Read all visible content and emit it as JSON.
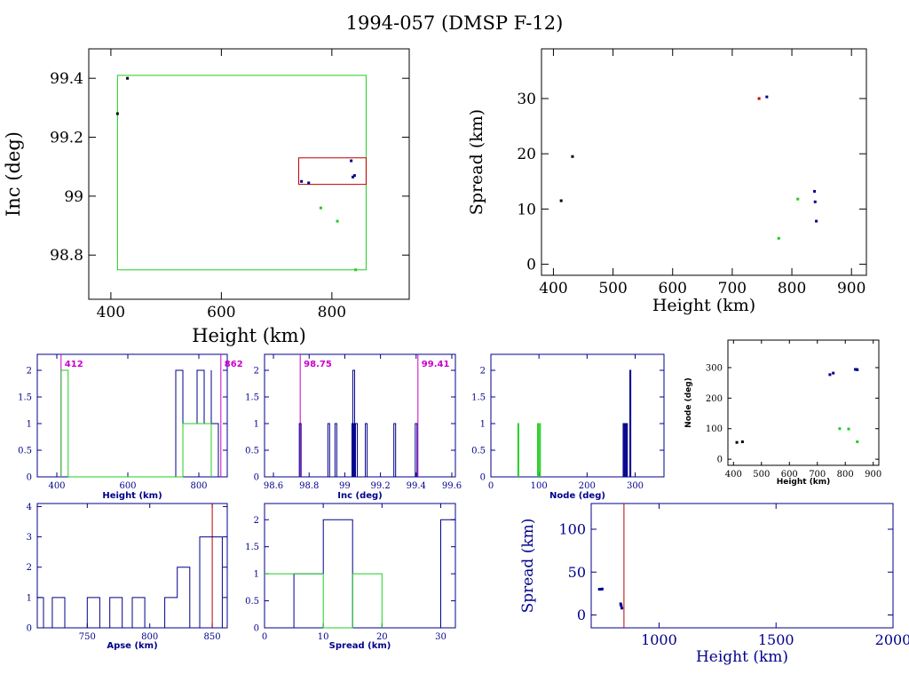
{
  "title": "1994-057 (DMSP F-12)",
  "colors": {
    "black": "#000000",
    "blue": "#00008b",
    "green": "#22cc22",
    "red": "#c00000",
    "magenta": "#cc00cc"
  },
  "chart_data": [
    {
      "id": "inc-vs-height",
      "type": "scatter",
      "xlabel": "Height (km)",
      "ylabel": "Inc (deg)",
      "xlim": [
        360,
        940
      ],
      "ylim": [
        98.65,
        99.5
      ],
      "xticks": [
        400,
        600,
        800
      ],
      "xtick_labels": [
        "400",
        "600",
        "800"
      ],
      "yticks": [
        98.8,
        99,
        99.2,
        99.4
      ],
      "ytick_labels": [
        "98.8",
        "99",
        "99.2",
        "99.4"
      ],
      "series": [
        {
          "color": "black",
          "points": [
            [
              412,
              99.28
            ],
            [
              430,
              99.4
            ]
          ]
        },
        {
          "color": "blue",
          "points": [
            [
              745,
              99.05
            ],
            [
              758,
              99.045
            ],
            [
              835,
              99.12
            ],
            [
              838,
              99.065
            ],
            [
              841,
              99.07
            ]
          ]
        },
        {
          "color": "green",
          "points": [
            [
              780,
              98.96
            ],
            [
              810,
              98.915
            ],
            [
              843,
              98.75
            ]
          ]
        }
      ],
      "boxes": [
        {
          "color": "green",
          "x": [
            412,
            862
          ],
          "y": [
            98.75,
            99.41
          ]
        },
        {
          "color": "red",
          "x": [
            740,
            862
          ],
          "y": [
            99.04,
            99.13
          ]
        }
      ]
    },
    {
      "id": "spread-vs-height",
      "type": "scatter",
      "xlabel": "Height (km)",
      "ylabel": "Spread (km)",
      "xlim": [
        380,
        925
      ],
      "ylim": [
        -2,
        39
      ],
      "xticks": [
        400,
        500,
        600,
        700,
        800,
        900
      ],
      "xtick_labels": [
        "400",
        "500",
        "600",
        "700",
        "800",
        "900"
      ],
      "yticks": [
        0,
        10,
        20,
        30
      ],
      "ytick_labels": [
        "0",
        "10",
        "20",
        "30"
      ],
      "series": [
        {
          "color": "black",
          "points": [
            [
              413,
              11.5
            ],
            [
              432,
              19.5
            ]
          ]
        },
        {
          "color": "blue",
          "points": [
            [
              758,
              30.3
            ],
            [
              838,
              13.2
            ],
            [
              839,
              11.3
            ],
            [
              841,
              7.8
            ]
          ]
        },
        {
          "color": "green",
          "points": [
            [
              778,
              4.7
            ],
            [
              810,
              11.8
            ]
          ]
        },
        {
          "color": "red",
          "points": [
            [
              745,
              30.0
            ]
          ]
        }
      ]
    },
    {
      "id": "height-hist",
      "type": "histogram",
      "xlabel": "Height (km)",
      "xlim": [
        345,
        880
      ],
      "ylim": [
        0,
        2.3
      ],
      "xticks": [
        400,
        600,
        800
      ],
      "xtick_labels": [
        "400",
        "600",
        "800"
      ],
      "yticks": [
        0,
        0.5,
        1,
        1.5,
        2
      ],
      "ytick_labels": [
        "0",
        "0.5",
        "1",
        "1.5",
        "2"
      ],
      "series": [
        {
          "color": "blue",
          "step": [
            [
              735,
              0
            ],
            [
              735,
              2
            ],
            [
              755,
              2
            ],
            [
              755,
              1
            ],
            [
              795,
              1
            ],
            [
              795,
              2
            ],
            [
              815,
              2
            ],
            [
              815,
              1
            ],
            [
              835,
              1
            ],
            [
              835,
              2
            ],
            [
              835,
              1
            ],
            [
              855,
              1
            ],
            [
              855,
              0
            ]
          ]
        },
        {
          "color": "green",
          "step": [
            [
              412,
              0
            ],
            [
              412,
              2
            ],
            [
              432,
              2
            ],
            [
              432,
              0
            ],
            [
              755,
              0
            ],
            [
              755,
              1
            ],
            [
              835,
              1
            ],
            [
              835,
              0
            ]
          ]
        }
      ],
      "vlines": [
        {
          "color": "magenta",
          "x": 412,
          "label": "412"
        },
        {
          "color": "magenta",
          "x": 862,
          "label": "862"
        }
      ]
    },
    {
      "id": "inc-hist",
      "type": "histogram",
      "xlabel": "Inc (deg)",
      "xlim": [
        98.55,
        99.62
      ],
      "ylim": [
        0,
        2.3
      ],
      "xticks": [
        98.6,
        98.8,
        99,
        99.2,
        99.4,
        99.6
      ],
      "xtick_labels": [
        "98.6",
        "98.8",
        "99",
        "99.2",
        "99.4",
        "99.6"
      ],
      "yticks": [
        0,
        0.5,
        1,
        1.5,
        2
      ],
      "ytick_labels": [
        "0",
        "0.5",
        "1",
        "1.5",
        "2"
      ],
      "series": [
        {
          "color": "blue",
          "bars": [
            [
              98.75,
              1
            ],
            [
              98.91,
              1
            ],
            [
              98.95,
              1
            ],
            [
              99.045,
              1
            ],
            [
              99.05,
              2
            ],
            [
              99.065,
              1
            ],
            [
              99.12,
              1
            ],
            [
              99.28,
              1
            ],
            [
              99.4,
              1
            ]
          ],
          "width": 0.01
        }
      ],
      "vlines": [
        {
          "color": "magenta",
          "x": 98.75,
          "label": "98.75"
        },
        {
          "color": "magenta",
          "x": 99.41,
          "label": "99.41"
        }
      ]
    },
    {
      "id": "node-hist",
      "type": "histogram",
      "xlabel": "Node (deg)",
      "xlim": [
        0,
        360
      ],
      "ylim": [
        0,
        2.3
      ],
      "xticks": [
        0,
        100,
        200,
        300
      ],
      "xtick_labels": [
        "0",
        "100",
        "200",
        "300"
      ],
      "yticks": [
        0,
        0.5,
        1,
        1.5,
        2
      ],
      "ytick_labels": [
        "0",
        "0.5",
        "1",
        "1.5",
        "2"
      ],
      "series": [
        {
          "color": "green",
          "bars": [
            [
              57,
              1
            ],
            [
              98,
              1
            ],
            [
              102,
              1
            ]
          ],
          "width": 2
        },
        {
          "color": "blue",
          "bars": [
            [
              276,
              1
            ],
            [
              278,
              1
            ],
            [
              280,
              1
            ],
            [
              283,
              1
            ],
            [
              290,
              2
            ]
          ],
          "width": 2
        }
      ]
    },
    {
      "id": "node-vs-height",
      "type": "scatter",
      "xlabel": "Height (km)",
      "ylabel": "Node (deg)",
      "xlim": [
        380,
        920
      ],
      "ylim": [
        -20,
        390
      ],
      "xticks": [
        400,
        500,
        600,
        700,
        800,
        900
      ],
      "xtick_labels": [
        "400",
        "500",
        "600",
        "700",
        "800",
        "900"
      ],
      "yticks": [
        0,
        100,
        200,
        300
      ],
      "ytick_labels": [
        "0",
        "100",
        "200",
        "300"
      ],
      "series": [
        {
          "color": "black",
          "points": [
            [
              412,
              55
            ],
            [
              432,
              57
            ]
          ]
        },
        {
          "color": "blue",
          "points": [
            [
              745,
              277
            ],
            [
              757,
              282
            ],
            [
              836,
              294
            ],
            [
              840,
              294
            ],
            [
              843,
              293
            ]
          ]
        },
        {
          "color": "green",
          "points": [
            [
              780,
              100
            ],
            [
              812,
              99
            ],
            [
              843,
              57
            ]
          ]
        }
      ]
    },
    {
      "id": "apse-hist",
      "type": "histogram",
      "xlabel": "Apse (km)",
      "xlim": [
        710,
        862
      ],
      "ylim": [
        0,
        4.1
      ],
      "xticks": [
        750,
        800,
        850
      ],
      "xtick_labels": [
        "750",
        "800",
        "850"
      ],
      "yticks": [
        0,
        1,
        2,
        3,
        4
      ],
      "ytick_labels": [
        "0",
        "1",
        "2",
        "3",
        "4"
      ],
      "series": [
        {
          "color": "blue",
          "step": [
            [
              710,
              0
            ],
            [
              710,
              1
            ],
            [
              715,
              1
            ],
            [
              715,
              0
            ],
            [
              722,
              0
            ],
            [
              722,
              1
            ],
            [
              732,
              1
            ],
            [
              732,
              0
            ],
            [
              750,
              0
            ],
            [
              750,
              1
            ],
            [
              760,
              1
            ],
            [
              760,
              0
            ],
            [
              768,
              0
            ],
            [
              768,
              1
            ],
            [
              778,
              1
            ],
            [
              778,
              0
            ],
            [
              786,
              0
            ],
            [
              786,
              1
            ],
            [
              796,
              1
            ],
            [
              796,
              0
            ],
            [
              812,
              0
            ],
            [
              812,
              1
            ],
            [
              822,
              1
            ],
            [
              822,
              2
            ],
            [
              832,
              2
            ],
            [
              832,
              0
            ],
            [
              840,
              0
            ],
            [
              840,
              3
            ],
            [
              850,
              3
            ],
            [
              850,
              3
            ],
            [
              858,
              3
            ],
            [
              858,
              0
            ]
          ]
        }
      ],
      "vlines": [
        {
          "color": "red",
          "x": 850
        }
      ]
    },
    {
      "id": "spread-hist",
      "type": "histogram",
      "xlabel": "Spread (km)",
      "xlim": [
        0,
        32.5
      ],
      "ylim": [
        0,
        2.3
      ],
      "xticks": [
        0,
        10,
        20,
        30
      ],
      "xtick_labels": [
        "0",
        "10",
        "20",
        "30"
      ],
      "yticks": [
        0,
        0.5,
        1,
        1.5,
        2
      ],
      "ytick_labels": [
        "0",
        "0.5",
        "1",
        "1.5",
        "2"
      ],
      "series": [
        {
          "color": "blue",
          "step": [
            [
              5,
              0
            ],
            [
              5,
              1
            ],
            [
              10,
              1
            ],
            [
              10,
              2
            ],
            [
              15,
              2
            ],
            [
              15,
              0
            ],
            [
              30,
              0
            ],
            [
              30,
              2
            ],
            [
              32.5,
              2
            ]
          ]
        },
        {
          "color": "green",
          "step": [
            [
              0,
              1
            ],
            [
              5,
              1
            ],
            [
              5,
              1
            ],
            [
              10,
              1
            ],
            [
              10,
              0
            ],
            [
              15,
              0
            ],
            [
              15,
              1
            ],
            [
              20,
              1
            ],
            [
              20,
              0
            ]
          ]
        }
      ]
    },
    {
      "id": "spread-vs-height-wide",
      "type": "scatter",
      "xlabel": "Height (km)",
      "ylabel": "Spread (km)",
      "xlim": [
        710,
        2000
      ],
      "ylim": [
        -15,
        130
      ],
      "xticks": [
        1000,
        1500,
        2000
      ],
      "xtick_labels": [
        "1000",
        "1500",
        "2000"
      ],
      "yticks": [
        0,
        50,
        100
      ],
      "ytick_labels": [
        "0",
        "50",
        "100"
      ],
      "series": [
        {
          "color": "blue",
          "points": [
            [
              745,
              30
            ],
            [
              752,
              30
            ],
            [
              757,
              30.3
            ],
            [
              836,
              13
            ],
            [
              838,
              11
            ],
            [
              841,
              8
            ]
          ]
        }
      ],
      "vlines": [
        {
          "color": "red",
          "x": 850
        }
      ]
    }
  ]
}
